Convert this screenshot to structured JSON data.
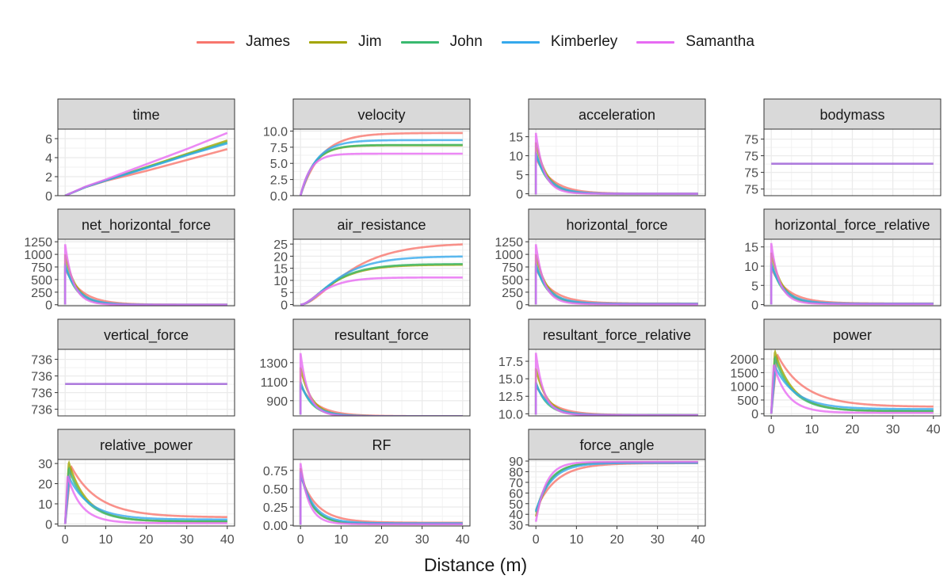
{
  "legend": [
    {
      "name": "James",
      "color": "#F8766D"
    },
    {
      "name": "Jim",
      "color": "#A3A500"
    },
    {
      "name": "John",
      "color": "#39B96F"
    },
    {
      "name": "Kimberley",
      "color": "#35A9EC"
    },
    {
      "name": "Samantha",
      "color": "#E76BF3"
    }
  ],
  "xlabel": "Distance (m)",
  "chart_data": {
    "type": "line",
    "xlabel": "Distance (m)",
    "x_range": [
      0,
      40
    ],
    "x_ticks": [
      0,
      10,
      20,
      30,
      40
    ],
    "grid": true,
    "legend_position": "top",
    "series_names": [
      "James",
      "Jim",
      "John",
      "Kimberley",
      "Samantha"
    ],
    "panels": [
      {
        "title": "time",
        "ylim": [
          0,
          7
        ],
        "y_ticks": [
          0,
          2,
          4,
          6
        ],
        "y_tick_labels": [
          "0",
          "2",
          "4",
          "6"
        ],
        "x_values": [
          0,
          40
        ],
        "series": [
          {
            "name": "James",
            "points": [
              [
                0,
                0
              ],
              [
                5,
                0.9
              ],
              [
                10,
                1.55
              ],
              [
                20,
                2.6
              ],
              [
                30,
                3.75
              ],
              [
                40,
                4.9
              ]
            ]
          },
          {
            "name": "Jim",
            "points": [
              [
                0,
                0
              ],
              [
                5,
                0.9
              ],
              [
                10,
                1.6
              ],
              [
                20,
                3.0
              ],
              [
                30,
                4.4
              ],
              [
                40,
                5.8
              ]
            ]
          },
          {
            "name": "John",
            "points": [
              [
                0,
                0
              ],
              [
                5,
                0.9
              ],
              [
                10,
                1.6
              ],
              [
                20,
                2.95
              ],
              [
                30,
                4.3
              ],
              [
                40,
                5.6
              ]
            ]
          },
          {
            "name": "Kimberley",
            "points": [
              [
                0,
                0
              ],
              [
                5,
                0.9
              ],
              [
                10,
                1.6
              ],
              [
                20,
                2.9
              ],
              [
                30,
                4.25
              ],
              [
                40,
                5.5
              ]
            ]
          },
          {
            "name": "Samantha",
            "points": [
              [
                0,
                0
              ],
              [
                5,
                0.95
              ],
              [
                10,
                1.7
              ],
              [
                20,
                3.3
              ],
              [
                30,
                4.9
              ],
              [
                40,
                6.6
              ]
            ]
          }
        ]
      },
      {
        "title": "velocity",
        "ylim": [
          0,
          10.3
        ],
        "y_ticks": [
          0,
          2.5,
          5,
          7.5,
          10
        ],
        "y_tick_labels": [
          "0.0",
          "2.5",
          "5.0",
          "7.5",
          "10.0"
        ],
        "series": [
          {
            "name": "James",
            "model": "sat",
            "max": 9.7,
            "k": 0.2
          },
          {
            "name": "Jim",
            "model": "sat",
            "max": 7.8,
            "k": 0.3
          },
          {
            "name": "John",
            "model": "sat",
            "max": 7.85,
            "k": 0.3
          },
          {
            "name": "Kimberley",
            "model": "sat",
            "max": 8.6,
            "k": 0.26
          },
          {
            "name": "Samantha",
            "model": "sat",
            "max": 6.5,
            "k": 0.4
          }
        ]
      },
      {
        "title": "acceleration",
        "ylim": [
          -0.5,
          17
        ],
        "y_ticks": [
          0,
          5,
          10,
          15
        ],
        "y_tick_labels": [
          "0",
          "5",
          "10",
          "15"
        ],
        "series": [
          {
            "name": "James",
            "model": "decay",
            "start": 9.5,
            "k": 0.2
          },
          {
            "name": "Jim",
            "model": "decay",
            "start": 13.5,
            "k": 0.3
          },
          {
            "name": "John",
            "model": "decay",
            "start": 11.0,
            "k": 0.3
          },
          {
            "name": "Kimberley",
            "model": "decay",
            "start": 10.5,
            "k": 0.26
          },
          {
            "name": "Samantha",
            "model": "decay",
            "start": 16.0,
            "k": 0.4
          }
        ]
      },
      {
        "title": "bodymass",
        "ylim": [
          0,
          1
        ],
        "y_ticks": [
          0.1,
          0.35,
          0.6,
          0.85
        ],
        "y_tick_labels": [
          "75",
          "75",
          "75",
          "75"
        ],
        "series": [
          {
            "name": "Samantha",
            "model": "const",
            "value": 0.48,
            "color": "#9B5BD6"
          }
        ]
      },
      {
        "title": "net_horizontal_force",
        "ylim": [
          -20,
          1300
        ],
        "y_ticks": [
          0,
          250,
          500,
          750,
          1000,
          1250
        ],
        "y_tick_labels": [
          "0",
          "250",
          "500",
          "750",
          "1000",
          "1250"
        ],
        "series": [
          {
            "name": "James",
            "model": "decay",
            "start": 720,
            "k": 0.2
          },
          {
            "name": "Jim",
            "model": "decay",
            "start": 1000,
            "k": 0.3
          },
          {
            "name": "John",
            "model": "decay",
            "start": 820,
            "k": 0.3
          },
          {
            "name": "Kimberley",
            "model": "decay",
            "start": 780,
            "k": 0.26
          },
          {
            "name": "Samantha",
            "model": "decay",
            "start": 1200,
            "k": 0.4
          }
        ]
      },
      {
        "title": "air_resistance",
        "ylim": [
          -0.5,
          27
        ],
        "y_ticks": [
          0,
          5,
          10,
          15,
          20,
          25
        ],
        "y_tick_labels": [
          "0",
          "5",
          "10",
          "15",
          "20",
          "25"
        ],
        "series": [
          {
            "name": "James",
            "model": "sat2",
            "max": 25.5,
            "k": 0.2
          },
          {
            "name": "Jim",
            "model": "sat2",
            "max": 16.5,
            "k": 0.3
          },
          {
            "name": "John",
            "model": "sat2",
            "max": 16.8,
            "k": 0.3
          },
          {
            "name": "Kimberley",
            "model": "sat2",
            "max": 20.0,
            "k": 0.26
          },
          {
            "name": "Samantha",
            "model": "sat2",
            "max": 11.2,
            "k": 0.4
          }
        ]
      },
      {
        "title": "horizontal_force",
        "ylim": [
          -20,
          1300
        ],
        "y_ticks": [
          0,
          250,
          500,
          750,
          1000,
          1250
        ],
        "y_tick_labels": [
          "0",
          "250",
          "500",
          "750",
          "1000",
          "1250"
        ],
        "series": [
          {
            "name": "James",
            "model": "decay",
            "start": 720,
            "k": 0.2,
            "floor": 25
          },
          {
            "name": "Jim",
            "model": "decay",
            "start": 1000,
            "k": 0.3,
            "floor": 16
          },
          {
            "name": "John",
            "model": "decay",
            "start": 820,
            "k": 0.3,
            "floor": 16
          },
          {
            "name": "Kimberley",
            "model": "decay",
            "start": 780,
            "k": 0.26,
            "floor": 20
          },
          {
            "name": "Samantha",
            "model": "decay",
            "start": 1200,
            "k": 0.4,
            "floor": 11
          }
        ]
      },
      {
        "title": "horizontal_force_relative",
        "ylim": [
          -0.3,
          17
        ],
        "y_ticks": [
          0,
          5,
          10,
          15
        ],
        "y_tick_labels": [
          "0",
          "5",
          "10",
          "15"
        ],
        "series": [
          {
            "name": "James",
            "model": "decay",
            "start": 9.5,
            "k": 0.2,
            "floor": 0.3
          },
          {
            "name": "Jim",
            "model": "decay",
            "start": 13.5,
            "k": 0.3,
            "floor": 0.2
          },
          {
            "name": "John",
            "model": "decay",
            "start": 11.0,
            "k": 0.3,
            "floor": 0.2
          },
          {
            "name": "Kimberley",
            "model": "decay",
            "start": 10.5,
            "k": 0.26,
            "floor": 0.25
          },
          {
            "name": "Samantha",
            "model": "decay",
            "start": 16.0,
            "k": 0.4,
            "floor": 0.15
          }
        ]
      },
      {
        "title": "vertical_force",
        "ylim": [
          0,
          1
        ],
        "y_ticks": [
          0.1,
          0.35,
          0.6,
          0.85
        ],
        "y_tick_labels": [
          "736",
          "736",
          "736",
          "736"
        ],
        "series": [
          {
            "name": "Samantha",
            "model": "const",
            "value": 0.48,
            "color": "#9B5BD6"
          }
        ]
      },
      {
        "title": "resultant_force",
        "ylim": [
          740,
          1440
        ],
        "y_ticks": [
          900,
          1100,
          1300
        ],
        "y_tick_labels": [
          "900",
          "1100",
          "1300"
        ],
        "series": [
          {
            "name": "James",
            "model": "decay",
            "start": 1060,
            "k": 0.2,
            "floor": 737
          },
          {
            "name": "Jim",
            "model": "decay",
            "start": 1250,
            "k": 0.3,
            "floor": 736
          },
          {
            "name": "John",
            "model": "decay",
            "start": 1100,
            "k": 0.3,
            "floor": 736
          },
          {
            "name": "Kimberley",
            "model": "decay",
            "start": 1080,
            "k": 0.26,
            "floor": 736
          },
          {
            "name": "Samantha",
            "model": "decay",
            "start": 1400,
            "k": 0.4,
            "floor": 736
          }
        ]
      },
      {
        "title": "resultant_force_relative",
        "ylim": [
          9.7,
          19.2
        ],
        "y_ticks": [
          10,
          12.5,
          15,
          17.5
        ],
        "y_tick_labels": [
          "10.0",
          "12.5",
          "15.0",
          "17.5"
        ],
        "series": [
          {
            "name": "James",
            "model": "decay",
            "start": 14.0,
            "k": 0.2,
            "floor": 9.82
          },
          {
            "name": "Jim",
            "model": "decay",
            "start": 16.5,
            "k": 0.3,
            "floor": 9.8
          },
          {
            "name": "John",
            "model": "decay",
            "start": 14.5,
            "k": 0.3,
            "floor": 9.8
          },
          {
            "name": "Kimberley",
            "model": "decay",
            "start": 14.3,
            "k": 0.26,
            "floor": 9.81
          },
          {
            "name": "Samantha",
            "model": "decay",
            "start": 18.7,
            "k": 0.4,
            "floor": 9.8
          }
        ]
      },
      {
        "title": "power",
        "ylim": [
          -80,
          2350
        ],
        "y_ticks": [
          0,
          500,
          1000,
          1500,
          2000
        ],
        "y_tick_labels": [
          "0",
          "500",
          "1000",
          "1500",
          "2000"
        ],
        "series": [
          {
            "name": "James",
            "model": "peak",
            "peak": 2150,
            "k": 0.2,
            "xpeak": 1.5,
            "floor": 250
          },
          {
            "name": "Jim",
            "model": "peak",
            "peak": 2270,
            "k": 0.3,
            "xpeak": 0.9,
            "floor": 90
          },
          {
            "name": "John",
            "model": "peak",
            "peak": 2050,
            "k": 0.3,
            "xpeak": 0.9,
            "floor": 95
          },
          {
            "name": "Kimberley",
            "model": "peak",
            "peak": 1700,
            "k": 0.26,
            "xpeak": 1.0,
            "floor": 165
          },
          {
            "name": "Samantha",
            "model": "peak",
            "peak": 1800,
            "k": 0.4,
            "xpeak": 0.6,
            "floor": 30
          }
        ]
      },
      {
        "title": "relative_power",
        "ylim": [
          -1,
          32
        ],
        "y_ticks": [
          0,
          10,
          20,
          30
        ],
        "y_tick_labels": [
          "0",
          "10",
          "20",
          "30"
        ],
        "series": [
          {
            "name": "James",
            "model": "peak",
            "peak": 28.5,
            "k": 0.2,
            "xpeak": 1.5,
            "floor": 3.3
          },
          {
            "name": "Jim",
            "model": "peak",
            "peak": 30.5,
            "k": 0.3,
            "xpeak": 0.9,
            "floor": 1.2
          },
          {
            "name": "John",
            "model": "peak",
            "peak": 27.5,
            "k": 0.3,
            "xpeak": 0.9,
            "floor": 1.3
          },
          {
            "name": "Kimberley",
            "model": "peak",
            "peak": 23.0,
            "k": 0.26,
            "xpeak": 1.0,
            "floor": 2.2
          },
          {
            "name": "Samantha",
            "model": "peak",
            "peak": 24.0,
            "k": 0.4,
            "xpeak": 0.6,
            "floor": 0.4
          }
        ]
      },
      {
        "title": "RF",
        "ylim": [
          -0.01,
          0.9
        ],
        "y_ticks": [
          0,
          0.25,
          0.5,
          0.75
        ],
        "y_tick_labels": [
          "0.00",
          "0.25",
          "0.50",
          "0.75"
        ],
        "series": [
          {
            "name": "James",
            "model": "decay",
            "start": 0.68,
            "k": 0.2,
            "floor": 0.035
          },
          {
            "name": "Jim",
            "model": "decay",
            "start": 0.78,
            "k": 0.3,
            "floor": 0.02
          },
          {
            "name": "John",
            "model": "decay",
            "start": 0.74,
            "k": 0.3,
            "floor": 0.022
          },
          {
            "name": "Kimberley",
            "model": "decay",
            "start": 0.72,
            "k": 0.26,
            "floor": 0.027
          },
          {
            "name": "Samantha",
            "model": "decay",
            "start": 0.85,
            "k": 0.4,
            "floor": 0.015
          }
        ]
      },
      {
        "title": "force_angle",
        "ylim": [
          29,
          91.5
        ],
        "y_ticks": [
          30,
          40,
          50,
          60,
          70,
          80,
          90
        ],
        "y_tick_labels": [
          "30",
          "40",
          "50",
          "60",
          "70",
          "80",
          "90"
        ],
        "series": [
          {
            "name": "James",
            "model": "sat",
            "max": 88,
            "k": 0.2,
            "start": 44
          },
          {
            "name": "Jim",
            "model": "sat",
            "max": 88.8,
            "k": 0.3,
            "start": 38
          },
          {
            "name": "John",
            "model": "sat",
            "max": 88.6,
            "k": 0.3,
            "start": 42
          },
          {
            "name": "Kimberley",
            "model": "sat",
            "max": 88.3,
            "k": 0.26,
            "start": 43
          },
          {
            "name": "Samantha",
            "model": "sat",
            "max": 89.2,
            "k": 0.4,
            "start": 33
          }
        ]
      }
    ]
  }
}
